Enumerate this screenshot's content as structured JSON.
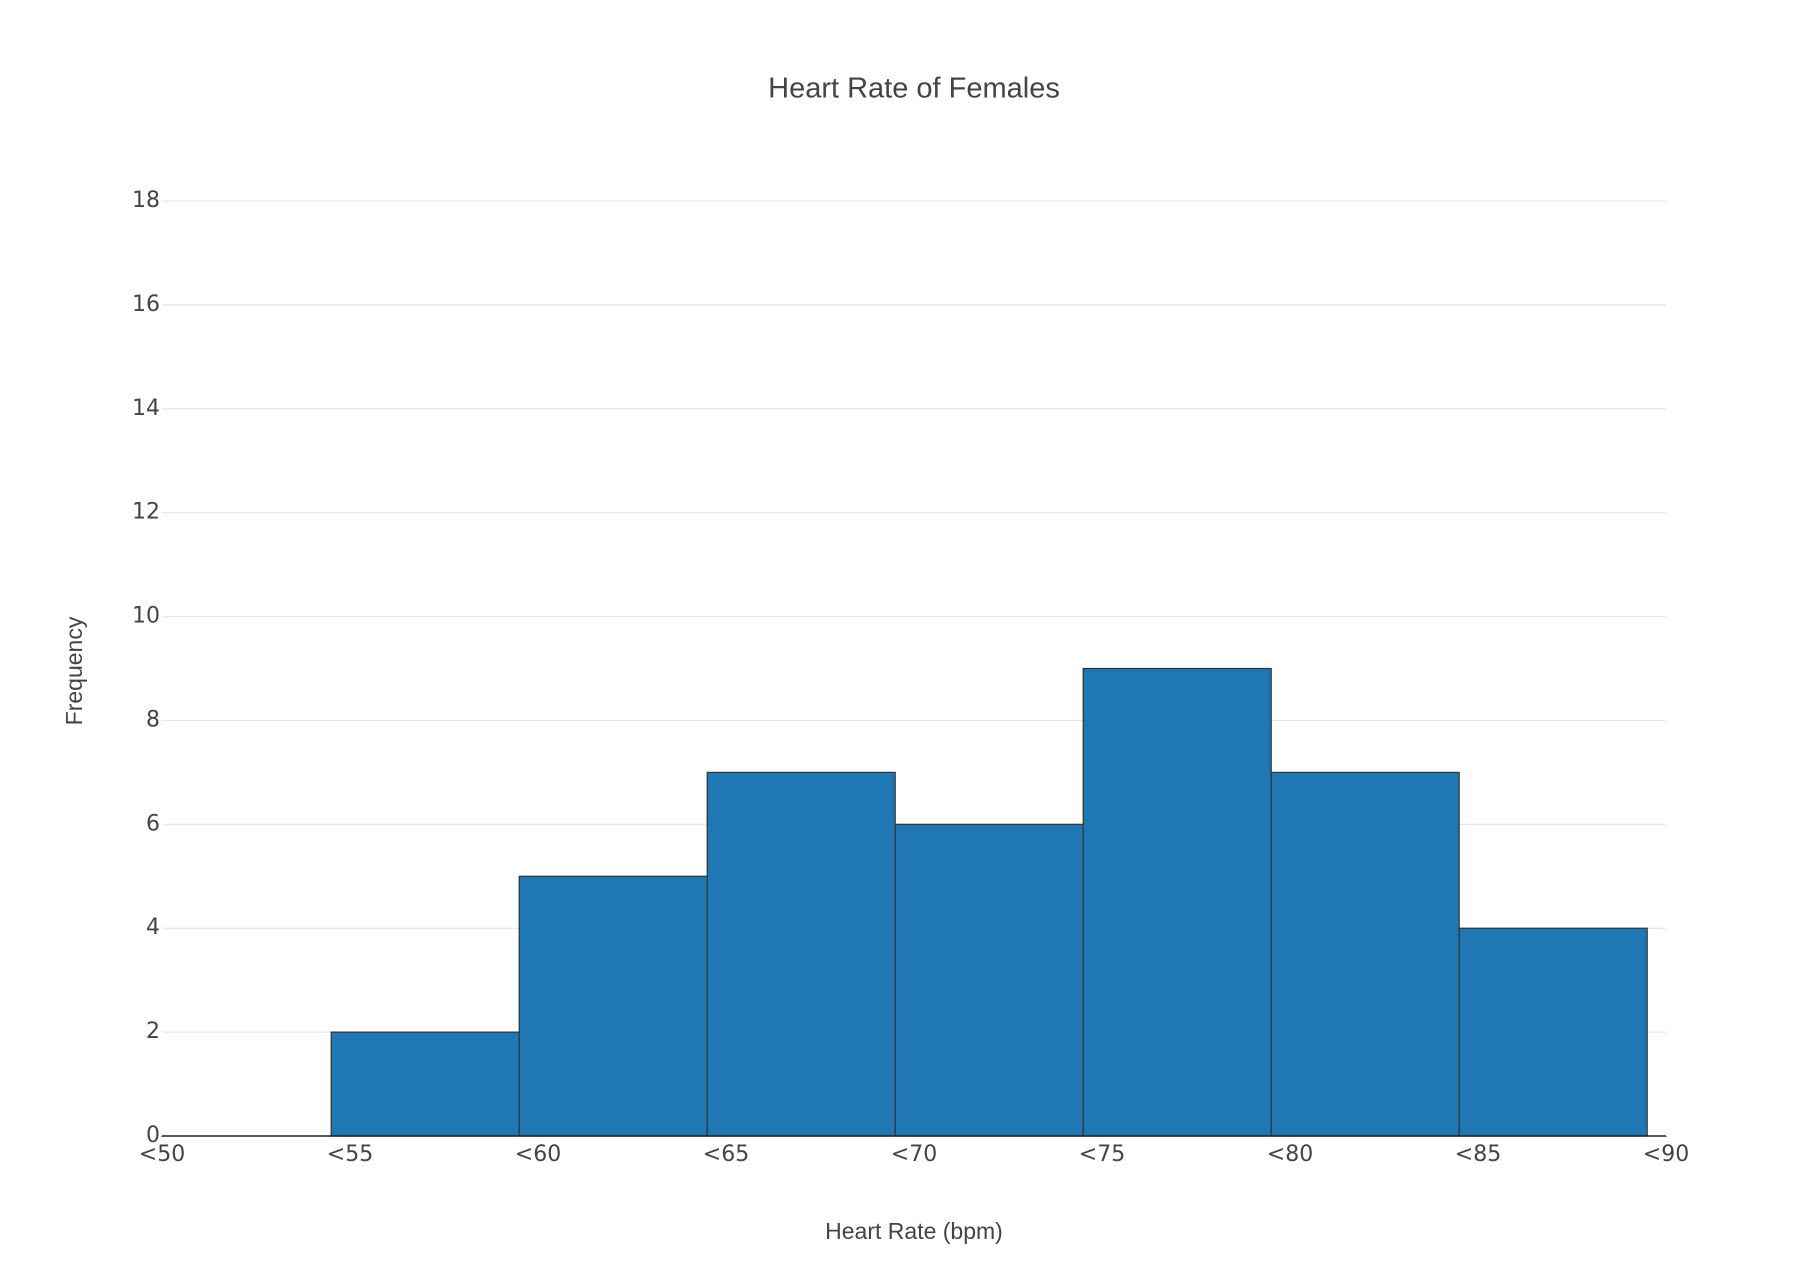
{
  "chart_data": {
    "type": "histogram",
    "title": "Heart Rate of Females",
    "x_label": "Heart Rate (bpm)",
    "y_label": "Frequency",
    "bins": [
      54.5,
      59.5,
      64.5,
      69.5,
      74.5,
      79.5,
      84.5,
      89.5
    ],
    "counts": [
      2,
      5,
      7,
      6,
      9,
      7,
      4
    ],
    "color": "#1f77b4",
    "xlim": [
      50,
      90
    ],
    "xticks": [
      {
        "value": 50,
        "label": "<50"
      },
      {
        "value": 55,
        "label": "<55"
      },
      {
        "value": 60,
        "label": "<60"
      },
      {
        "value": 65,
        "label": "<65"
      },
      {
        "value": 70,
        "label": "<70"
      },
      {
        "value": 75,
        "label": "<75"
      },
      {
        "value": 80,
        "label": "<80"
      },
      {
        "value": 85,
        "label": "<85"
      },
      {
        "value": 90,
        "label": "<90"
      }
    ],
    "ylim": [
      0,
      18
    ],
    "yticks": [
      0,
      2,
      4,
      6,
      8,
      10,
      12,
      14,
      16,
      18
    ],
    "grid": true
  }
}
